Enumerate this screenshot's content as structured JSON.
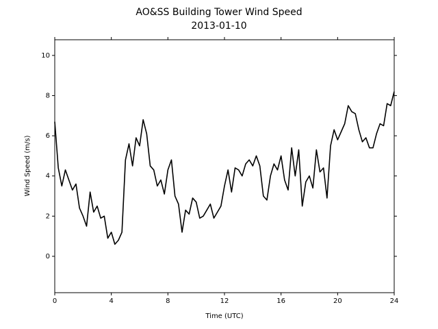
{
  "chart_data": {
    "type": "line",
    "title": "AO&SS Building Tower Wind Speed",
    "subtitle": "2013-01-10",
    "x_label": "Time (UTC)",
    "y_label": "Wind Speed (m/s)",
    "xlim": [
      0,
      24
    ],
    "xticks": [
      0,
      4,
      8,
      12,
      16,
      20,
      24
    ],
    "ylim": [
      -1.81,
      10.78
    ],
    "yticks": [
      0,
      2,
      4,
      6,
      8,
      10
    ],
    "grid": false,
    "series": [
      {
        "name": "Wind Speed",
        "color": "#000000",
        "x": [
          0.0,
          0.25,
          0.5,
          0.75,
          1.0,
          1.25,
          1.5,
          1.75,
          2.0,
          2.25,
          2.5,
          2.75,
          3.0,
          3.25,
          3.5,
          3.75,
          4.0,
          4.25,
          4.5,
          4.75,
          5.0,
          5.25,
          5.5,
          5.75,
          6.0,
          6.25,
          6.5,
          6.75,
          7.0,
          7.25,
          7.5,
          7.75,
          8.0,
          8.25,
          8.5,
          8.75,
          9.0,
          9.25,
          9.5,
          9.75,
          10.0,
          10.25,
          10.5,
          10.75,
          11.0,
          11.25,
          11.5,
          11.75,
          12.0,
          12.25,
          12.5,
          12.75,
          13.0,
          13.25,
          13.5,
          13.75,
          14.0,
          14.25,
          14.5,
          14.75,
          15.0,
          15.25,
          15.5,
          15.75,
          16.0,
          16.25,
          16.5,
          16.75,
          17.0,
          17.25,
          17.5,
          17.75,
          18.0,
          18.25,
          18.5,
          18.75,
          19.0,
          19.25,
          19.5,
          19.75,
          20.0,
          20.25,
          20.5,
          20.75,
          21.0,
          21.25,
          21.5,
          21.75,
          22.0,
          22.25,
          22.5,
          22.75,
          23.0,
          23.25,
          23.5,
          23.75,
          24.0
        ],
        "values": [
          6.7,
          4.4,
          3.5,
          4.3,
          3.8,
          3.3,
          3.6,
          2.4,
          2.0,
          1.5,
          3.2,
          2.2,
          2.5,
          1.9,
          2.0,
          0.9,
          1.2,
          0.6,
          0.8,
          1.2,
          4.8,
          5.6,
          4.5,
          5.9,
          5.5,
          6.8,
          6.1,
          4.5,
          4.3,
          3.5,
          3.8,
          3.1,
          4.3,
          4.8,
          3.0,
          2.6,
          1.2,
          2.3,
          2.1,
          2.9,
          2.7,
          1.9,
          2.0,
          2.3,
          2.6,
          1.9,
          2.2,
          2.5,
          3.5,
          4.3,
          3.2,
          4.4,
          4.3,
          4.0,
          4.6,
          4.8,
          4.5,
          5.0,
          4.5,
          3.0,
          2.8,
          4.0,
          4.6,
          4.3,
          5.0,
          3.8,
          3.3,
          5.4,
          4.0,
          5.3,
          2.5,
          3.7,
          4.0,
          3.4,
          5.3,
          4.2,
          4.4,
          2.9,
          5.5,
          6.3,
          5.8,
          6.2,
          6.6,
          7.5,
          7.2,
          7.1,
          6.3,
          5.7,
          5.9,
          5.4,
          5.4,
          6.1,
          6.6,
          6.5,
          7.6,
          7.5,
          8.2
        ]
      }
    ]
  }
}
